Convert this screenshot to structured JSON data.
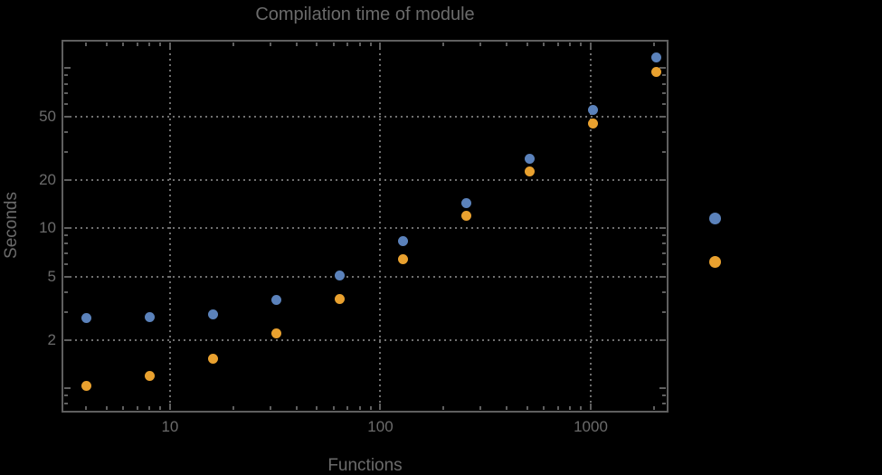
{
  "chart_data": {
    "type": "scatter",
    "title": "Compilation time of module",
    "xlabel": "Functions",
    "ylabel": "Seconds",
    "x_scale": "log",
    "y_scale": "log",
    "grid": "dotted",
    "legend_position": "right-outside",
    "xlim": [
      3.08,
      2320
    ],
    "ylim": [
      0.715,
      148.5
    ],
    "x": [
      4,
      8,
      16,
      32,
      64,
      128,
      256,
      512,
      1024,
      2048
    ],
    "series": [
      {
        "name": "blue",
        "color": "#5B82BB",
        "values": [
          2.74,
          2.77,
          2.89,
          3.56,
          5.08,
          8.3,
          14.3,
          27.1,
          54.6,
          116
        ]
      },
      {
        "name": "orange",
        "color": "#E9A12F",
        "values": [
          1.04,
          1.2,
          1.54,
          2.2,
          3.6,
          6.4,
          11.9,
          22.5,
          45.4,
          95
        ]
      }
    ],
    "x_ticks_major": {
      "values": [
        10,
        100,
        1000
      ],
      "labels": [
        "10",
        "100",
        "1000"
      ]
    },
    "x_ticks_minor": [
      4,
      5,
      6,
      7,
      8,
      9,
      20,
      30,
      40,
      50,
      60,
      70,
      80,
      90,
      200,
      300,
      400,
      500,
      600,
      700,
      800,
      900,
      2000
    ],
    "y_ticks_major": {
      "values": [
        2,
        5,
        10,
        20,
        50
      ],
      "labels": [
        "2",
        "5",
        "10",
        "20",
        "50"
      ]
    },
    "y_ticks_unlabeled": [
      1,
      100
    ],
    "y_ticks_minor": [
      0.8,
      0.9,
      3,
      4,
      6,
      7,
      8,
      9,
      30,
      40,
      60,
      70,
      80,
      90
    ],
    "gridlines_x": [
      10,
      100,
      1000
    ],
    "gridlines_y": [
      2,
      5,
      10,
      20,
      50
    ],
    "legend": {
      "markers": [
        {
          "name": "blue-series-marker",
          "color": "#5B82BB"
        },
        {
          "name": "orange-series-marker",
          "color": "#E9A12F"
        }
      ]
    },
    "colors": {
      "background": "#000000",
      "text": "#6b6b6b",
      "frame": "#5f5f5f",
      "grid": "#6f6f6f",
      "series_blue": "#5B82BB",
      "series_orange": "#E9A12F"
    }
  }
}
